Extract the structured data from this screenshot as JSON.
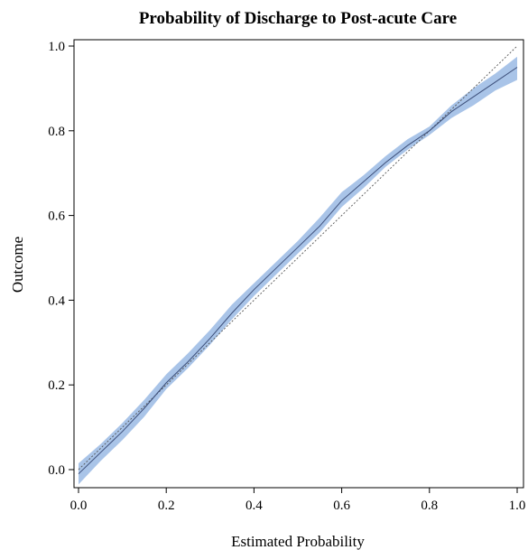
{
  "chart_data": {
    "type": "line",
    "title": "Probability of Discharge to Post-acute Care",
    "xlabel": "Estimated Probability",
    "ylabel": "Outcome",
    "xlim": [
      0,
      1
    ],
    "ylim": [
      -0.04,
      1.02
    ],
    "x_ticks": [
      "0.0",
      "0.2",
      "0.4",
      "0.6",
      "0.8",
      "1.0"
    ],
    "y_ticks": [
      "0.0",
      "0.2",
      "0.4",
      "0.6",
      "0.8",
      "1.0"
    ],
    "grid": false,
    "reference_line": {
      "style": "dotted",
      "from": [
        0,
        0
      ],
      "to": [
        1,
        1
      ]
    },
    "series": [
      {
        "x": [
          0.0,
          0.05,
          0.1,
          0.15,
          0.2,
          0.25,
          0.3,
          0.35,
          0.4,
          0.45,
          0.5,
          0.55,
          0.6,
          0.65,
          0.7,
          0.75,
          0.8,
          0.85,
          0.9,
          0.95,
          1.0
        ],
        "y": [
          -0.01,
          0.04,
          0.09,
          0.145,
          0.205,
          0.255,
          0.31,
          0.37,
          0.425,
          0.475,
          0.525,
          0.575,
          0.635,
          0.68,
          0.725,
          0.765,
          0.8,
          0.845,
          0.88,
          0.915,
          0.95
        ],
        "lower": [
          -0.035,
          0.02,
          0.07,
          0.125,
          0.19,
          0.24,
          0.295,
          0.355,
          0.41,
          0.46,
          0.51,
          0.56,
          0.62,
          0.665,
          0.715,
          0.755,
          0.79,
          0.83,
          0.86,
          0.895,
          0.92
        ],
        "upper": [
          0.015,
          0.06,
          0.11,
          0.165,
          0.225,
          0.275,
          0.33,
          0.39,
          0.44,
          0.49,
          0.54,
          0.595,
          0.655,
          0.695,
          0.74,
          0.78,
          0.81,
          0.86,
          0.9,
          0.935,
          0.975
        ],
        "line_color": "#3d4f7a",
        "band_color": "#a9c4e8"
      }
    ]
  }
}
